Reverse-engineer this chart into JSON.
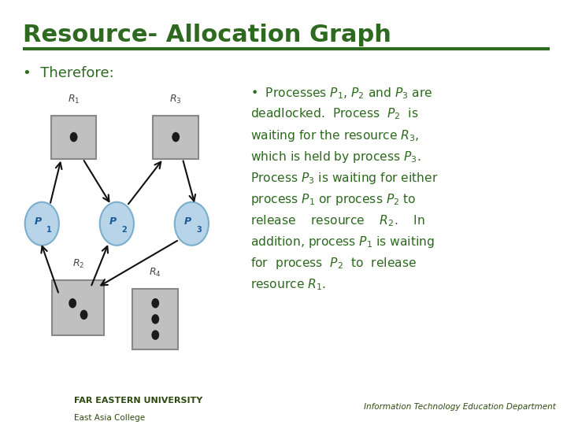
{
  "title": "Resource- Allocation Graph",
  "title_color": "#2d6a1f",
  "title_fontsize": 22,
  "bg_color": "#ffffff",
  "footer_bg": "#c8d96f",
  "footer_text1": "FAR EASTERN UNIVERSITY",
  "footer_text2": "East Asia College",
  "footer_right": "Information Technology Education Department",
  "separator_color": "#2d6a1f",
  "node_fill": "#b8d4e8",
  "node_edge": "#7aaecc",
  "resource_fill": "#c0c0c0",
  "resource_edge": "#888888",
  "dot_color": "#1a1a1a",
  "arrow_color": "#111111",
  "label_color": "#444444",
  "text_color": "#2d6a1f"
}
